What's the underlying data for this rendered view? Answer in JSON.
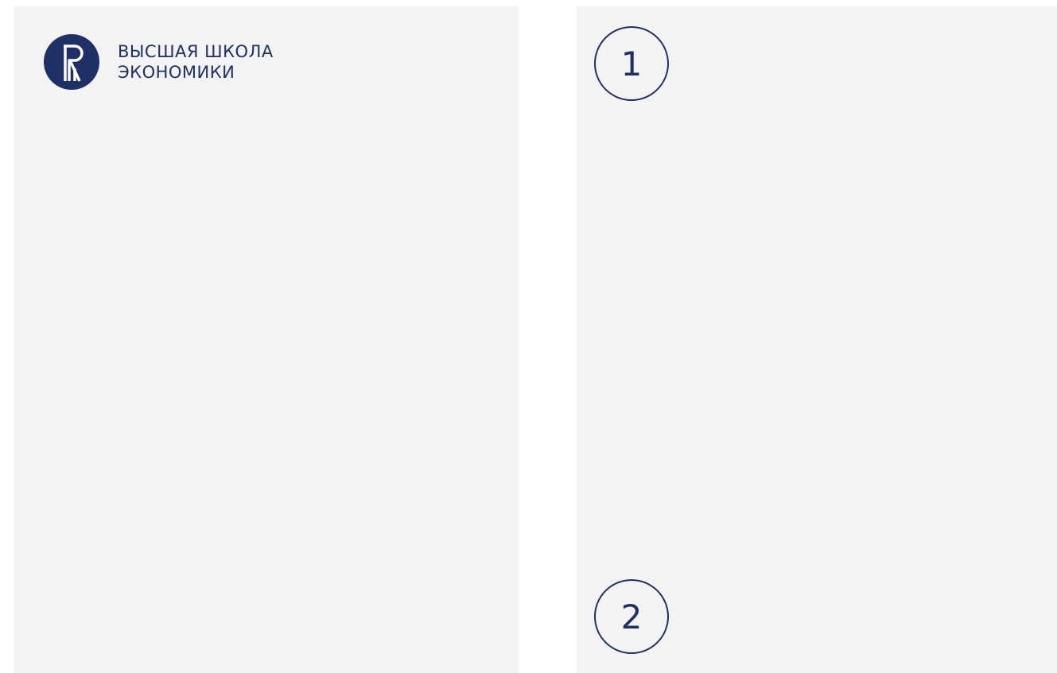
{
  "logo": {
    "line1": "ВЫСШАЯ ШКОЛА",
    "line2": "ЭКОНОМИКИ"
  },
  "markers": [
    "1",
    "2"
  ]
}
